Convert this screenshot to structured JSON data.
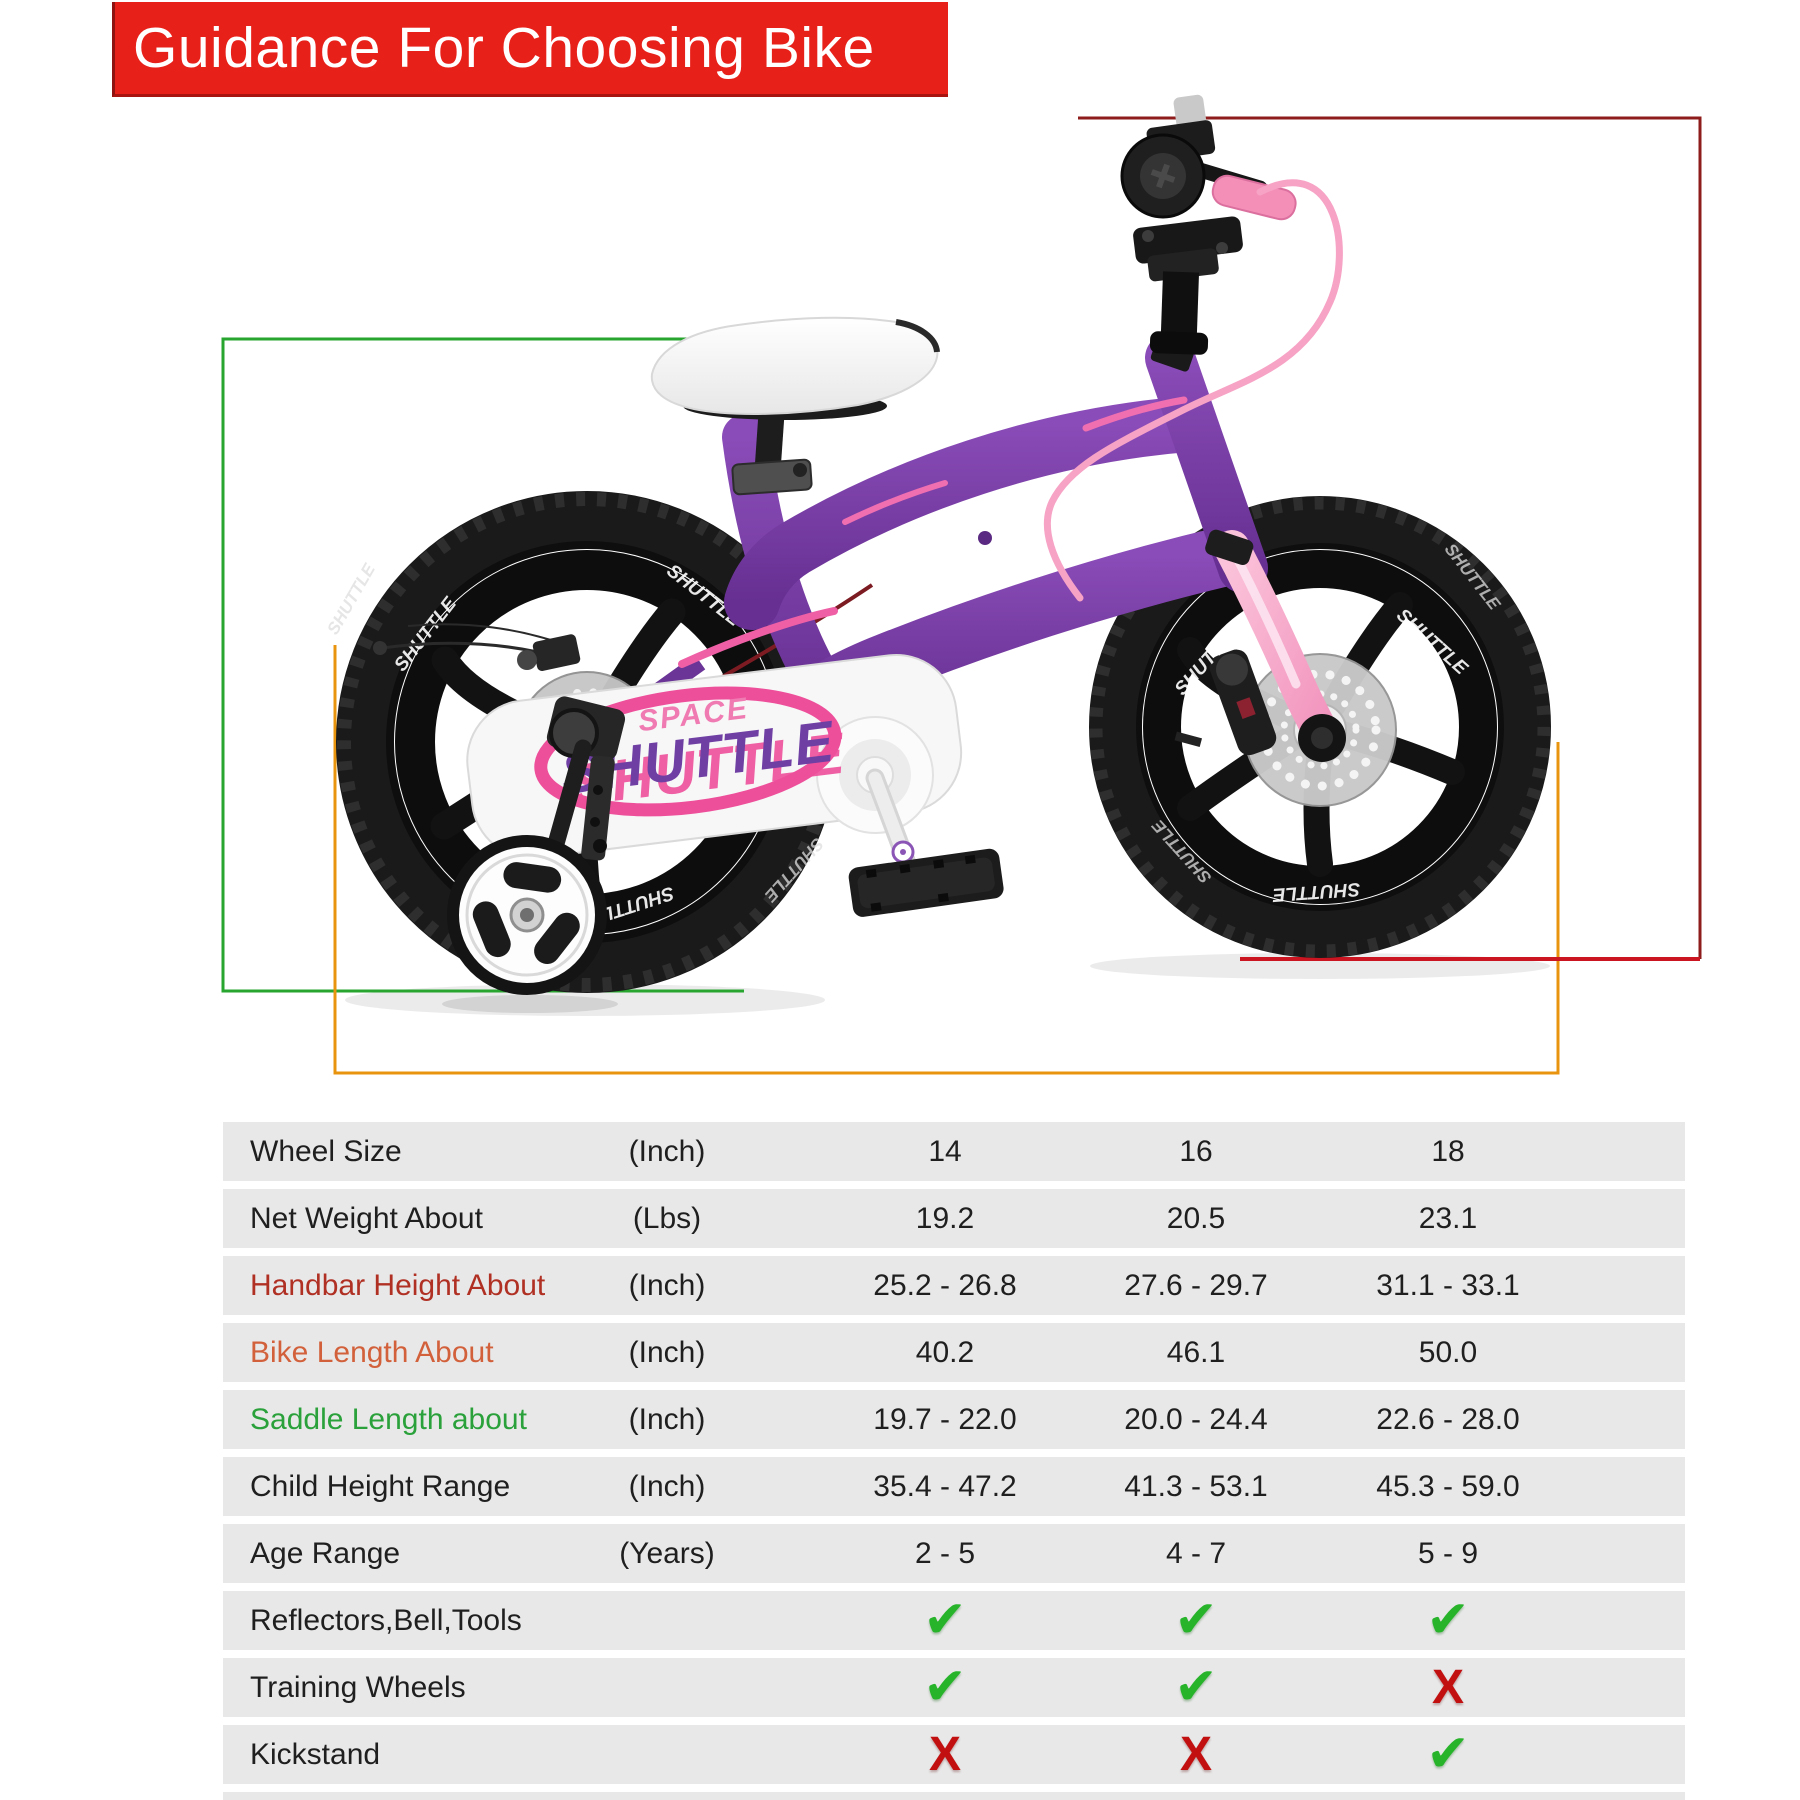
{
  "banner": {
    "title": "Guidance For Choosing Bike",
    "bg_color": "#e8201a",
    "text_color": "#ffffff"
  },
  "bike": {
    "decals": {
      "space": "SPACE",
      "shuttle": "SHUTTLE",
      "rim": "SHUTTLE"
    },
    "colors": {
      "frame_purple": "#7a3da6",
      "fork_pink": "#f5a5c6",
      "cable_pink": "#f6a3c5",
      "swoosh_pink": "#ee4f9b",
      "decal_purple": "#6f3fa4",
      "decal_space_pink": "#f07ab2",
      "tire_black": "#1a1a1a",
      "saddle_white": "#fafafa",
      "chainguard_white": "#f7f7f7"
    }
  },
  "annotations": {
    "handlebar_height": {
      "color": "#8f1c1c",
      "ground_color": "#cb1622"
    },
    "saddle_length": {
      "color": "#27a52f"
    },
    "bike_length": {
      "color": "#e8940e"
    }
  },
  "table": {
    "row_bg": "#e8e8e8",
    "check_glyph": "✔",
    "cross_glyph": "X",
    "check_color": "#27b32a",
    "cross_color": "#c21010",
    "value_columns": [
      "14",
      "16",
      "18"
    ],
    "rows": [
      {
        "label": "Wheel Size",
        "unit": "(Inch)",
        "type": "text",
        "values": [
          "14",
          "16",
          "18"
        ]
      },
      {
        "label": "Net Weight About",
        "unit": "(Lbs)",
        "type": "text",
        "values": [
          "19.2",
          "20.5",
          "23.1"
        ]
      },
      {
        "label": "Handbar Height About",
        "unit": "(Inch)",
        "type": "text",
        "label_color": "#b03024",
        "values": [
          "25.2 - 26.8",
          "27.6 - 29.7",
          "31.1 - 33.1"
        ]
      },
      {
        "label": "Bike Length About",
        "unit": "(Inch)",
        "type": "text",
        "label_color": "#d2603a",
        "values": [
          "40.2",
          "46.1",
          "50.0"
        ]
      },
      {
        "label": "Saddle Length about",
        "unit": "(Inch)",
        "type": "text",
        "label_color": "#2aa13a",
        "values": [
          "19.7 - 22.0",
          "20.0 - 24.4",
          "22.6 - 28.0"
        ]
      },
      {
        "label": "Child Height Range",
        "unit": "(Inch)",
        "type": "text",
        "values": [
          "35.4 - 47.2",
          "41.3 - 53.1",
          "45.3 - 59.0"
        ]
      },
      {
        "label": "Age Range",
        "unit": "(Years)",
        "type": "text",
        "values": [
          "2 - 5",
          "4 - 7",
          "5 - 9"
        ]
      },
      {
        "label": "Reflectors,Bell,Tools",
        "unit": "",
        "type": "icons",
        "values": [
          "check",
          "check",
          "check"
        ]
      },
      {
        "label": "Training Wheels",
        "unit": "",
        "type": "icons",
        "values": [
          "check",
          "check",
          "cross"
        ]
      },
      {
        "label": "Kickstand",
        "unit": "",
        "type": "icons",
        "values": [
          "cross",
          "cross",
          "check"
        ]
      }
    ]
  }
}
